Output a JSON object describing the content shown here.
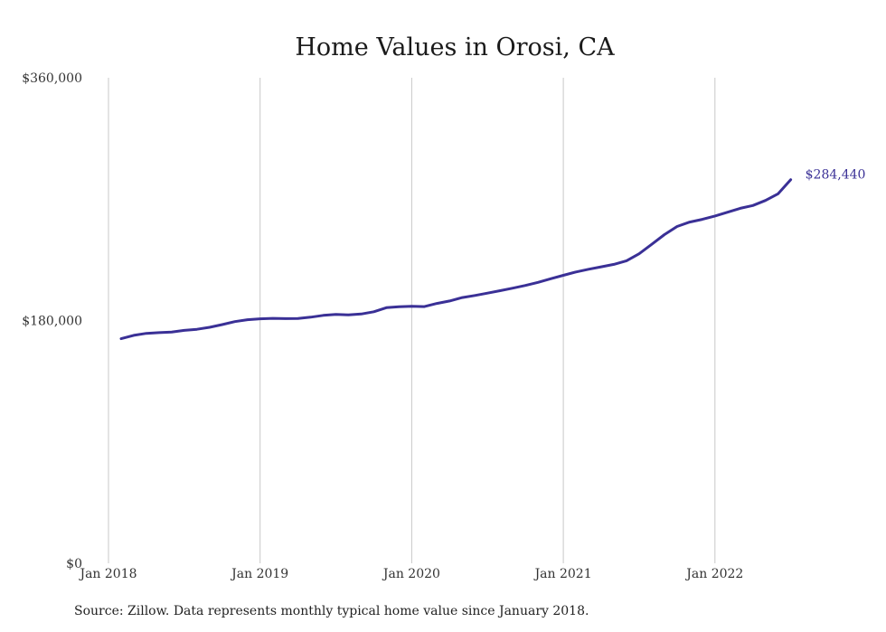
{
  "chart_data": {
    "type": "line",
    "title": "Home Values in Orosi, CA",
    "xlabel": "",
    "ylabel": "",
    "x_ticks": [
      "Jan 2018",
      "Jan 2019",
      "Jan 2020",
      "Jan 2021",
      "Jan 2022"
    ],
    "y_ticks": [
      "$0",
      "$180,000",
      "$360,000"
    ],
    "ylim": [
      0,
      360000
    ],
    "xlim": [
      "2018-01",
      "2022-07"
    ],
    "grid": "vertical",
    "line_color": "#3a3096",
    "grid_color": "#c8c8c8",
    "end_label": "$284,440",
    "series": [
      {
        "x": [
          "2018-02",
          "2018-03",
          "2018-04",
          "2018-05",
          "2018-06",
          "2018-07",
          "2018-08",
          "2018-09",
          "2018-10",
          "2018-11",
          "2018-12",
          "2019-01",
          "2019-02",
          "2019-03",
          "2019-04",
          "2019-05",
          "2019-06",
          "2019-07",
          "2019-08",
          "2019-09",
          "2019-10",
          "2019-11",
          "2019-12",
          "2020-01",
          "2020-02",
          "2020-03",
          "2020-04",
          "2020-05",
          "2020-06",
          "2020-07",
          "2020-08",
          "2020-09",
          "2020-10",
          "2020-11",
          "2020-12",
          "2021-01",
          "2021-02",
          "2021-03",
          "2021-04",
          "2021-05",
          "2021-06",
          "2021-07",
          "2021-08",
          "2021-09",
          "2021-10",
          "2021-11",
          "2021-12",
          "2022-01",
          "2022-02",
          "2022-03",
          "2022-04",
          "2022-05",
          "2022-06",
          "2022-07"
        ],
        "values": [
          166500,
          169000,
          170500,
          171000,
          171500,
          172700,
          173500,
          175000,
          177000,
          179200,
          180600,
          181300,
          181600,
          181400,
          181500,
          182500,
          183800,
          184500,
          184200,
          184800,
          186500,
          189500,
          190200,
          190500,
          190300,
          192700,
          194500,
          197000,
          198600,
          200300,
          202100,
          204000,
          206000,
          208300,
          211000,
          213500,
          216000,
          218000,
          219800,
          221600,
          224300,
          229500,
          236500,
          243700,
          249700,
          253000,
          255000,
          257500,
          260300,
          263200,
          265300,
          269000,
          274000,
          284440
        ]
      }
    ]
  },
  "source": "Source: Zillow. Data represents monthly typical home value since January 2018."
}
